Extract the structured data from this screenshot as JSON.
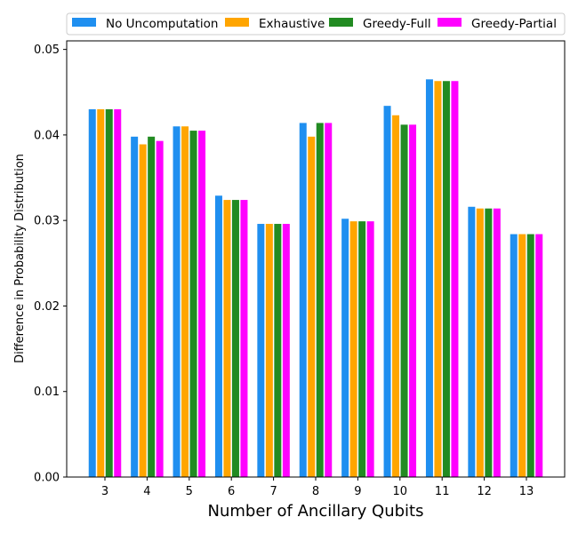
{
  "chart_data": {
    "type": "bar",
    "xlabel": "Number of Ancillary Qubits",
    "ylabel": "Difference in Probability Distribution",
    "categories": [
      "3",
      "4",
      "5",
      "6",
      "7",
      "8",
      "9",
      "10",
      "11",
      "12",
      "13"
    ],
    "ylim": [
      0,
      0.051
    ],
    "yticks": [
      "0.00",
      "0.01",
      "0.02",
      "0.03",
      "0.04",
      "0.05"
    ],
    "ytick_values": [
      0,
      0.01,
      0.02,
      0.03,
      0.04,
      0.05
    ],
    "grid": false,
    "legend_position": "top",
    "series": [
      {
        "name": "No Uncomputation",
        "color": "#1f8ff0",
        "values": [
          0.043,
          0.0398,
          0.041,
          0.0329,
          0.0296,
          0.0414,
          0.0302,
          0.0434,
          0.0465,
          0.0316,
          0.0284
        ]
      },
      {
        "name": "Exhaustive",
        "color": "#ffa500",
        "values": [
          0.043,
          0.0389,
          0.041,
          0.0324,
          0.0296,
          0.0398,
          0.0299,
          0.0423,
          0.0463,
          0.0314,
          0.0284
        ]
      },
      {
        "name": "Greedy-Full",
        "color": "#228b22",
        "values": [
          0.043,
          0.0398,
          0.0405,
          0.0324,
          0.0296,
          0.0414,
          0.0299,
          0.0412,
          0.0463,
          0.0314,
          0.0284
        ]
      },
      {
        "name": "Greedy-Partial",
        "color": "#ff00ff",
        "values": [
          0.043,
          0.0393,
          0.0405,
          0.0324,
          0.0296,
          0.0414,
          0.0299,
          0.0412,
          0.0463,
          0.0314,
          0.0284
        ]
      }
    ]
  }
}
